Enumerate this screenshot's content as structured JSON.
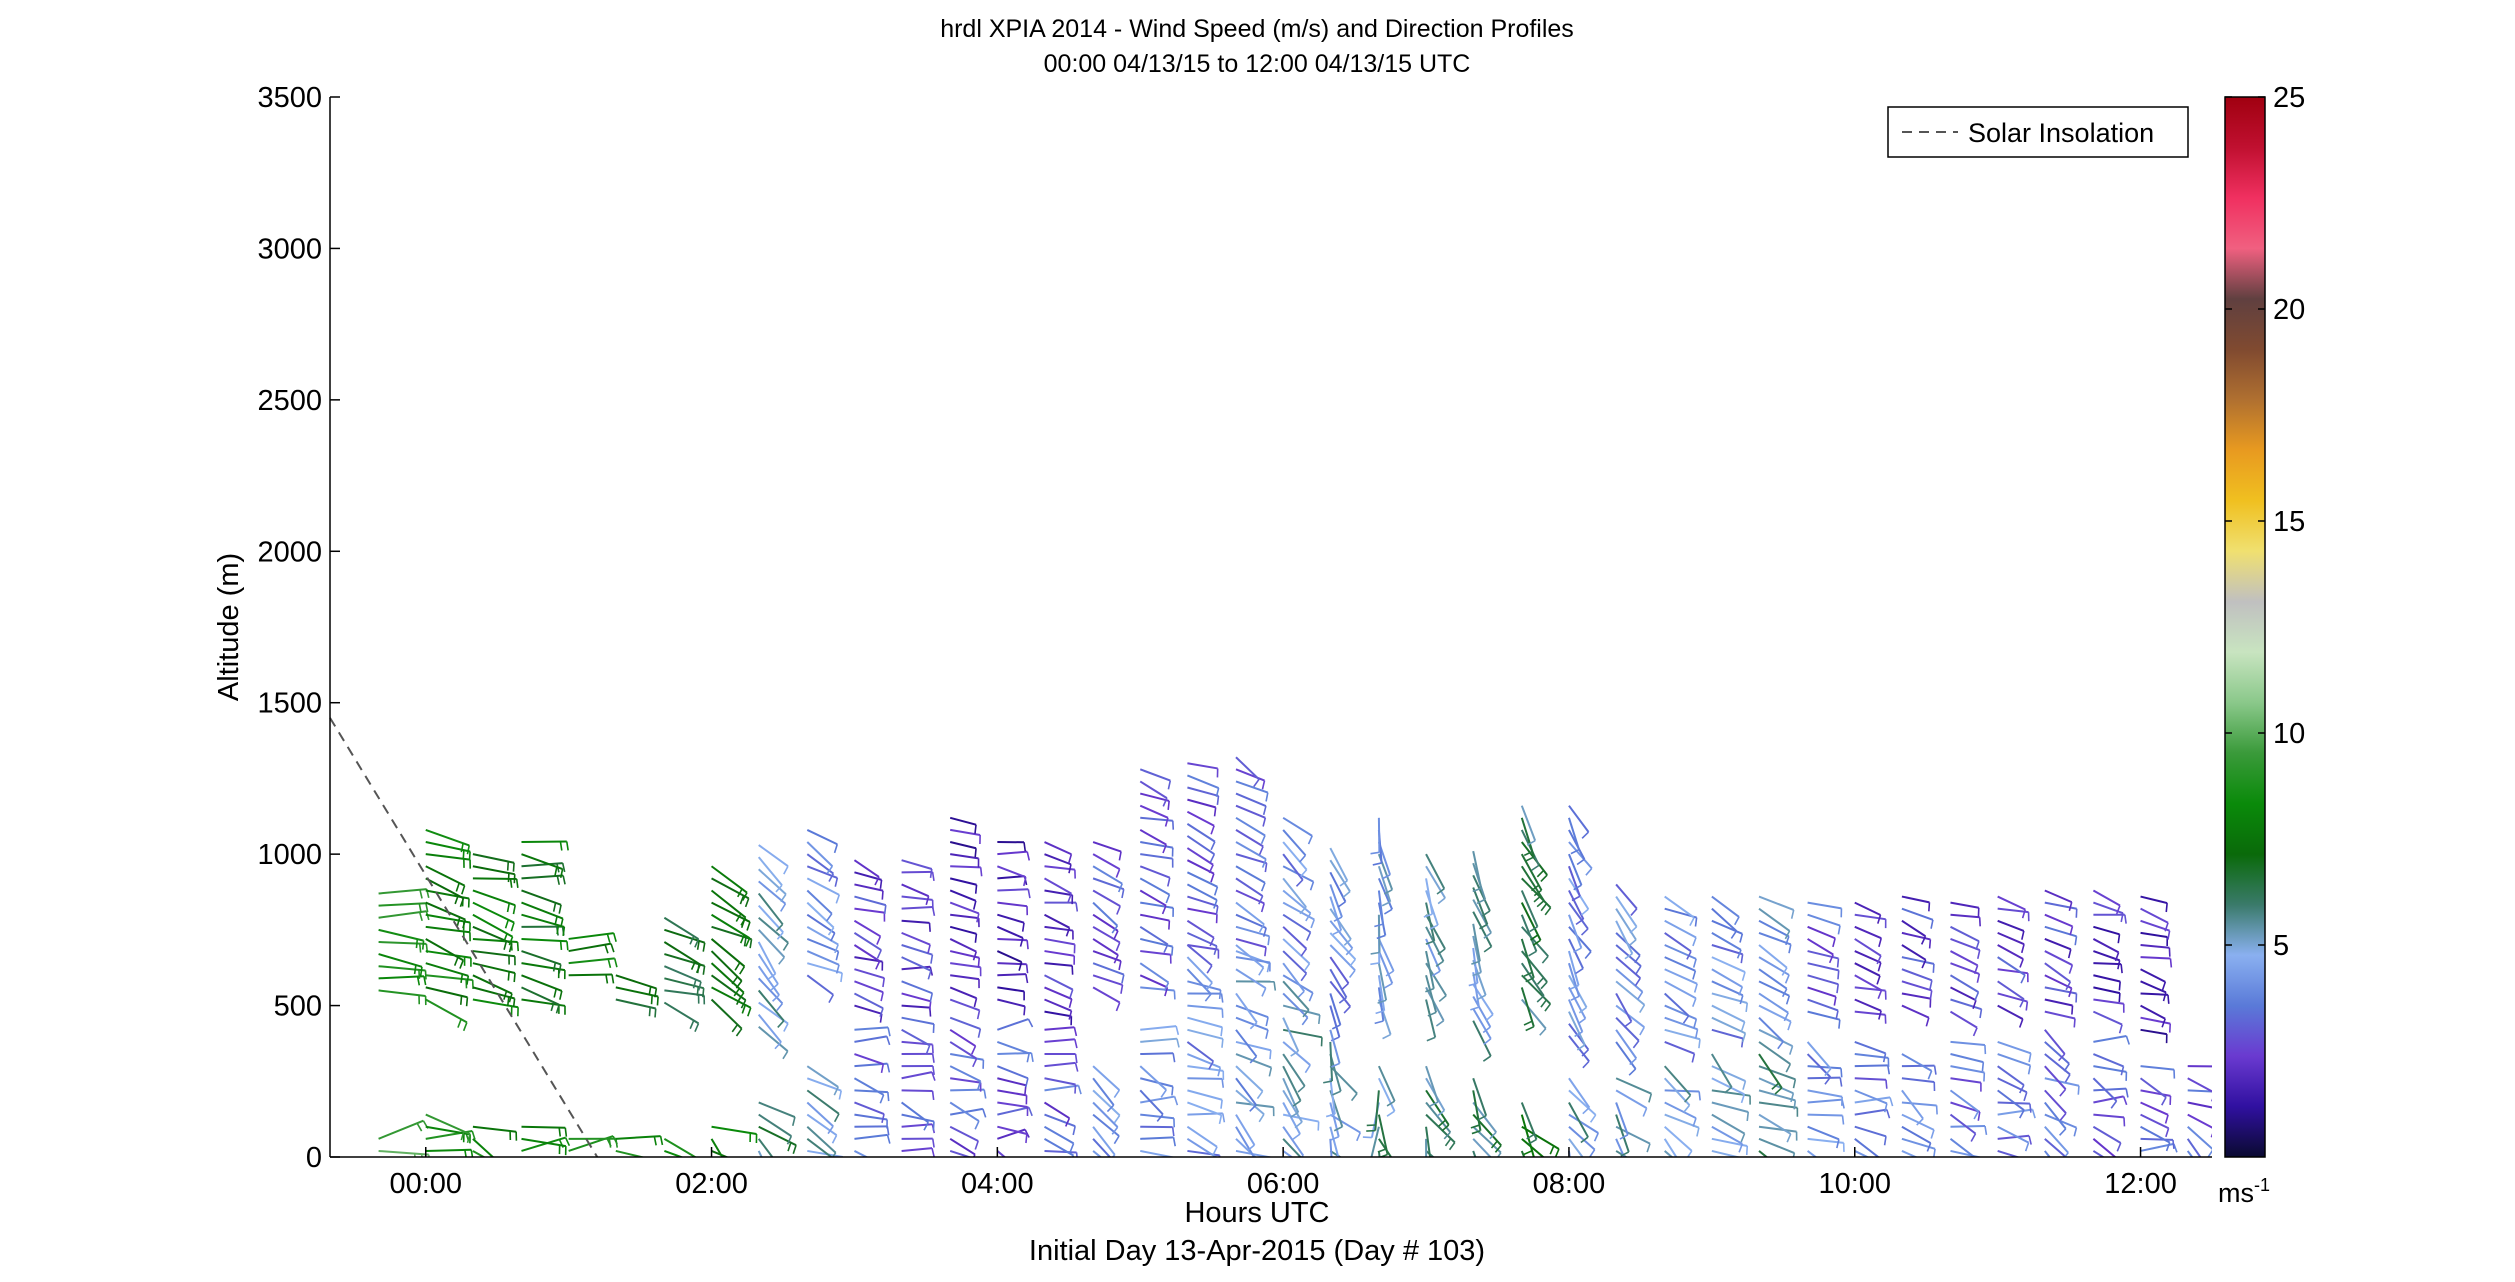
{
  "chart_data": {
    "type": "wind-barb-profile",
    "title": "hrdl XPIA 2014 - Wind Speed (m/s) and Direction Profiles",
    "subtitle": "00:00 04/13/15 to 12:00 04/13/15  UTC",
    "xlabel": "Hours UTC",
    "xlabel2": "Initial Day 13-Apr-2015 (Day # 103)",
    "ylabel": "Altitude (m)",
    "xlim_hours": [
      -0.67,
      12.5
    ],
    "ylim": [
      0,
      3500
    ],
    "x_ticks": [
      {
        "hour": 0,
        "label": "00:00"
      },
      {
        "hour": 2,
        "label": "02:00"
      },
      {
        "hour": 4,
        "label": "04:00"
      },
      {
        "hour": 6,
        "label": "06:00"
      },
      {
        "hour": 8,
        "label": "08:00"
      },
      {
        "hour": 10,
        "label": "10:00"
      },
      {
        "hour": 12,
        "label": "12:00"
      }
    ],
    "y_ticks": [
      0,
      500,
      1000,
      1500,
      2000,
      2500,
      3000,
      3500
    ],
    "y_tick_labels": [
      "0",
      "500",
      "1000",
      "1500",
      "2000",
      "2500",
      "3000",
      "3500"
    ],
    "legend": {
      "label": "Solar Insolation",
      "placement": "top-right",
      "style": "dashed"
    },
    "solar_insolation_line": [
      [
        -0.67,
        1450
      ],
      [
        1.2,
        0
      ]
    ],
    "colorbar": {
      "range": [
        0,
        25
      ],
      "ticks": [
        5,
        10,
        15,
        20,
        25
      ],
      "tick_labels": [
        "5",
        "10",
        "15",
        "20",
        "25"
      ],
      "unit_label": "ms",
      "unit_exp": "-1",
      "stops": [
        "#0a0a30",
        "#3010a0",
        "#6a3ad0",
        "#5a7ad8",
        "#8ab0f0",
        "#3a7a6a",
        "#0a6a0a",
        "#0a8a0a",
        "#3a9a3a",
        "#8ac88a",
        "#c8e4c0",
        "#c0c0c0",
        "#f0e070",
        "#f0c020",
        "#e89a20",
        "#b07030",
        "#804a30",
        "#604040",
        "#f06080",
        "#f03060",
        "#c01030",
        "#a00010"
      ]
    },
    "profiles": [
      {
        "hour": -0.33,
        "alt_min": 550,
        "alt_max": 890,
        "speed": 9,
        "dir": 275,
        "low_max": 60
      },
      {
        "hour": 0.0,
        "alt_min": 520,
        "alt_max": 1080,
        "speed": 8,
        "dir": 285,
        "low_max": 160
      },
      {
        "hour": 0.33,
        "alt_min": 520,
        "alt_max": 1000,
        "speed": 7.5,
        "dir": 285,
        "low_max": 130
      },
      {
        "hour": 0.67,
        "alt_min": 520,
        "alt_max": 1070,
        "speed": 7.5,
        "dir": 280,
        "low_max": 110
      },
      {
        "hour": 1.0,
        "alt_min": 600,
        "alt_max": 740,
        "speed": 8,
        "dir": 275,
        "low_max": 60
      },
      {
        "hour": 1.33,
        "alt_min": 520,
        "alt_max": 620,
        "speed": 7.5,
        "dir": 275,
        "low_max": 70
      },
      {
        "hour": 1.67,
        "alt_min": 510,
        "alt_max": 800,
        "speed": 7,
        "dir": 290,
        "low_max": 80
      },
      {
        "hour": 2.0,
        "alt_min": 520,
        "alt_max": 990,
        "speed": 7,
        "dir": 300,
        "low_max": 100
      },
      {
        "hour": 2.33,
        "alt_min": 430,
        "alt_max": 1030,
        "speed": 5,
        "dir": 320,
        "low_max": 200
      },
      {
        "hour": 2.67,
        "alt_min": 600,
        "alt_max": 1100,
        "speed": 4,
        "dir": 300,
        "low_max": 320
      },
      {
        "hour": 3.0,
        "alt_min": 500,
        "alt_max": 990,
        "speed": 2.5,
        "dir": 290,
        "low_max": 440
      },
      {
        "hour": 3.33,
        "alt_min": 500,
        "alt_max": 980,
        "speed": 2.5,
        "dir": 280,
        "low_max": 460
      },
      {
        "hour": 3.67,
        "alt_min": 520,
        "alt_max": 1120,
        "speed": 2,
        "dir": 285,
        "low_max": 470
      },
      {
        "hour": 4.0,
        "alt_min": 520,
        "alt_max": 1040,
        "speed": 2,
        "dir": 280,
        "low_max": 440
      },
      {
        "hour": 4.33,
        "alt_min": 480,
        "alt_max": 1060,
        "speed": 2,
        "dir": 285,
        "low_max": 420
      },
      {
        "hour": 4.67,
        "alt_min": 560,
        "alt_max": 1050,
        "speed": 3,
        "dir": 300,
        "low_max": 300
      },
      {
        "hour": 5.0,
        "alt_min": 560,
        "alt_max": 1300,
        "speed": 3,
        "dir": 290,
        "low_max": 430
      },
      {
        "hour": 5.33,
        "alt_min": 700,
        "alt_max": 1300,
        "speed": 3,
        "dir": 290,
        "low_max": 720
      },
      {
        "hour": 5.67,
        "alt_min": 680,
        "alt_max": 1340,
        "speed": 3.5,
        "dir": 300,
        "low_max": 700
      },
      {
        "hour": 6.0,
        "alt_min": 600,
        "alt_max": 1150,
        "speed": 4,
        "dir": 310,
        "low_max": 600
      },
      {
        "hour": 6.33,
        "alt_min": 500,
        "alt_max": 1030,
        "speed": 4,
        "dir": 330,
        "low_max": 430
      },
      {
        "hour": 6.67,
        "alt_min": 520,
        "alt_max": 1130,
        "speed": 4.5,
        "dir": 350,
        "low_max": 300
      },
      {
        "hour": 7.0,
        "alt_min": 520,
        "alt_max": 1030,
        "speed": 5,
        "dir": 340,
        "low_max": 300
      },
      {
        "hour": 7.33,
        "alt_min": 450,
        "alt_max": 1020,
        "speed": 5,
        "dir": 340,
        "low_max": 260
      },
      {
        "hour": 7.67,
        "alt_min": 520,
        "alt_max": 1180,
        "speed": 6,
        "dir": 330,
        "low_max": 200
      },
      {
        "hour": 8.0,
        "alt_min": 400,
        "alt_max": 1170,
        "speed": 4,
        "dir": 330,
        "low_max": 260
      },
      {
        "hour": 8.33,
        "alt_min": 380,
        "alt_max": 900,
        "speed": 4,
        "dir": 320,
        "low_max": 280
      },
      {
        "hour": 8.67,
        "alt_min": 380,
        "alt_max": 870,
        "speed": 4,
        "dir": 300,
        "low_max": 300
      },
      {
        "hour": 9.0,
        "alt_min": 420,
        "alt_max": 870,
        "speed": 4,
        "dir": 300,
        "low_max": 340
      },
      {
        "hour": 9.33,
        "alt_min": 420,
        "alt_max": 880,
        "speed": 4.5,
        "dir": 300,
        "low_max": 380
      },
      {
        "hour": 9.67,
        "alt_min": 480,
        "alt_max": 850,
        "speed": 3,
        "dir": 290,
        "low_max": 400
      },
      {
        "hour": 10.0,
        "alt_min": 480,
        "alt_max": 860,
        "speed": 2.5,
        "dir": 290,
        "low_max": 380
      },
      {
        "hour": 10.33,
        "alt_min": 500,
        "alt_max": 860,
        "speed": 2.5,
        "dir": 295,
        "low_max": 360
      },
      {
        "hour": 10.67,
        "alt_min": 480,
        "alt_max": 860,
        "speed": 2.5,
        "dir": 290,
        "low_max": 380
      },
      {
        "hour": 11.0,
        "alt_min": 500,
        "alt_max": 860,
        "speed": 2.5,
        "dir": 290,
        "low_max": 400
      },
      {
        "hour": 11.33,
        "alt_min": 480,
        "alt_max": 890,
        "speed": 2.5,
        "dir": 295,
        "low_max": 420
      },
      {
        "hour": 11.67,
        "alt_min": 480,
        "alt_max": 900,
        "speed": 2,
        "dir": 285,
        "low_max": 380
      },
      {
        "hour": 12.0,
        "alt_min": 420,
        "alt_max": 880,
        "speed": 2,
        "dir": 285,
        "low_max": 330
      },
      {
        "hour": 12.33,
        "alt_min": 0,
        "alt_max": 0,
        "speed": 2,
        "dir": 300,
        "low_max": 300
      }
    ]
  }
}
